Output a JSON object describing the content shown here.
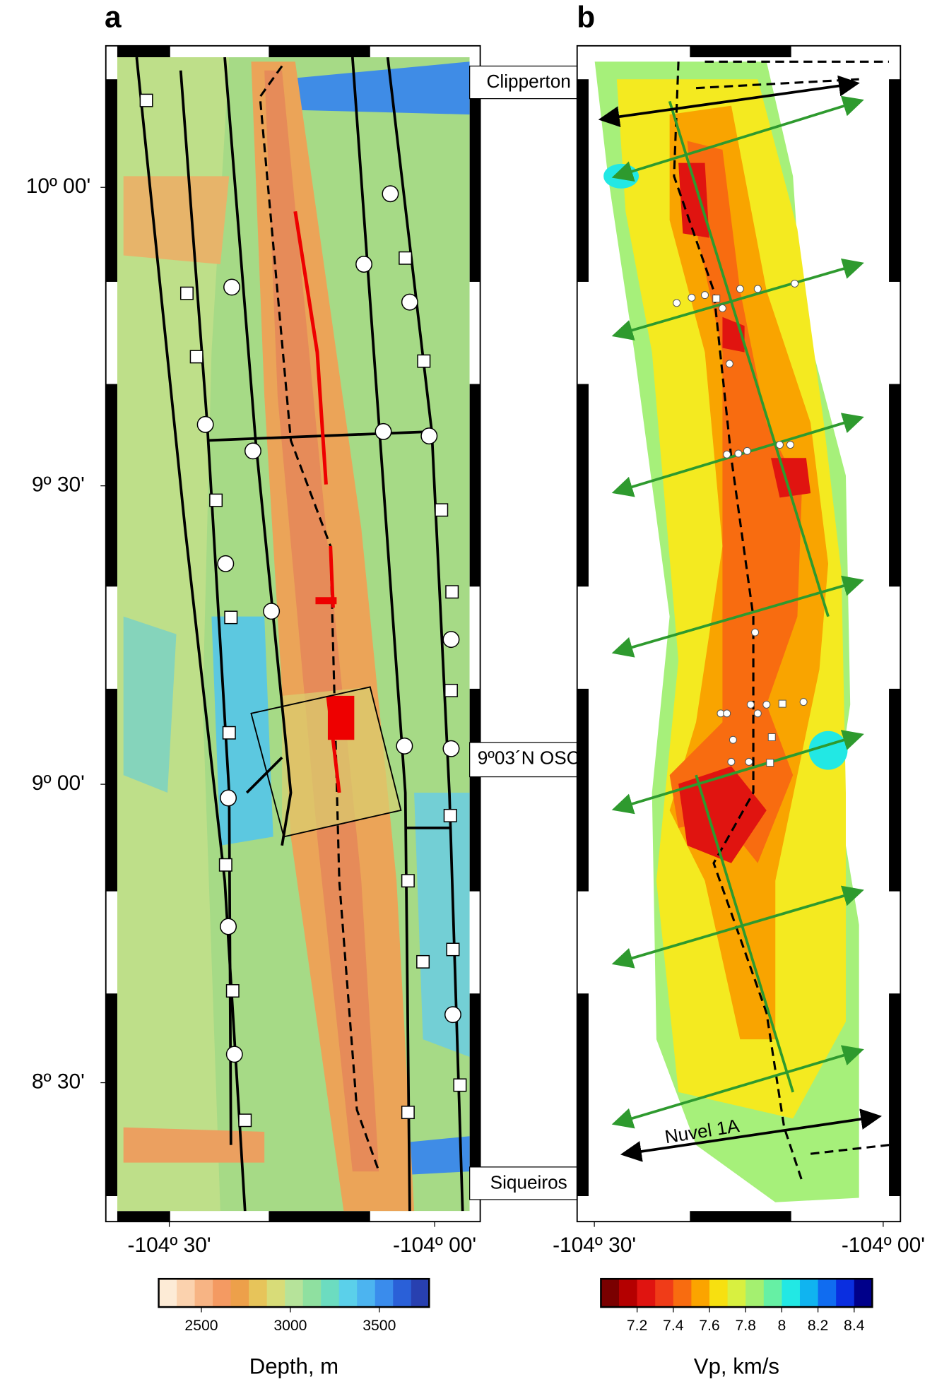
{
  "panels": [
    {
      "label": "a",
      "xlim": [
        -104.598,
        -103.934
      ],
      "ylim": [
        8.285,
        10.218
      ],
      "xticks": [
        {
          "value": -104.5,
          "label": "-104º 30'"
        },
        {
          "value": -104,
          "label": "-104º 00'"
        }
      ],
      "yticks": [
        {
          "value": 10,
          "label": "10º 00'"
        },
        {
          "value": 9.5,
          "label": "9º 30'"
        },
        {
          "value": 9,
          "label": "9º 00'"
        },
        {
          "value": 8.5,
          "label": "8º 30'"
        }
      ],
      "annotations": [
        "Clipperton",
        "9º03´N OSC",
        "Siqueiros"
      ]
    },
    {
      "label": "b",
      "xlim": [
        -104.51,
        -103.99
      ],
      "ylim": [
        8.285,
        10.218
      ],
      "xticks": [
        {
          "value": -104.5,
          "label": "-104º 30'"
        },
        {
          "value": -104,
          "label": "-104º 00'"
        }
      ],
      "annotations": [
        "Nuvel 1A"
      ]
    }
  ],
  "colorbars": [
    {
      "label": "Depth, m",
      "range": [
        2260,
        3780
      ],
      "ticks": [
        2500,
        3000,
        3500
      ],
      "colors": [
        "#fdebd6",
        "#fbd2ae",
        "#f7b484",
        "#f49a62",
        "#eda04a",
        "#e7c45a",
        "#d8dc78",
        "#b6e39a",
        "#8fe0a0",
        "#6cdcc0",
        "#5bd0ea",
        "#4cb4f0",
        "#3a8cec",
        "#2a60d8",
        "#2840b0"
      ]
    },
    {
      "label": "Vp, km/s",
      "range": [
        7.0,
        8.5
      ],
      "ticks": [
        7.2,
        7.4,
        7.6,
        7.8,
        8.0,
        8.2,
        8.4
      ],
      "colors": [
        "#7a0000",
        "#b40000",
        "#e01410",
        "#f03c18",
        "#f86c10",
        "#fba400",
        "#f7e010",
        "#d8f040",
        "#a4f070",
        "#66f0a4",
        "#22e8e4",
        "#10b4f0",
        "#106cf0",
        "#0a2ee0",
        "#00008a"
      ]
    }
  ]
}
